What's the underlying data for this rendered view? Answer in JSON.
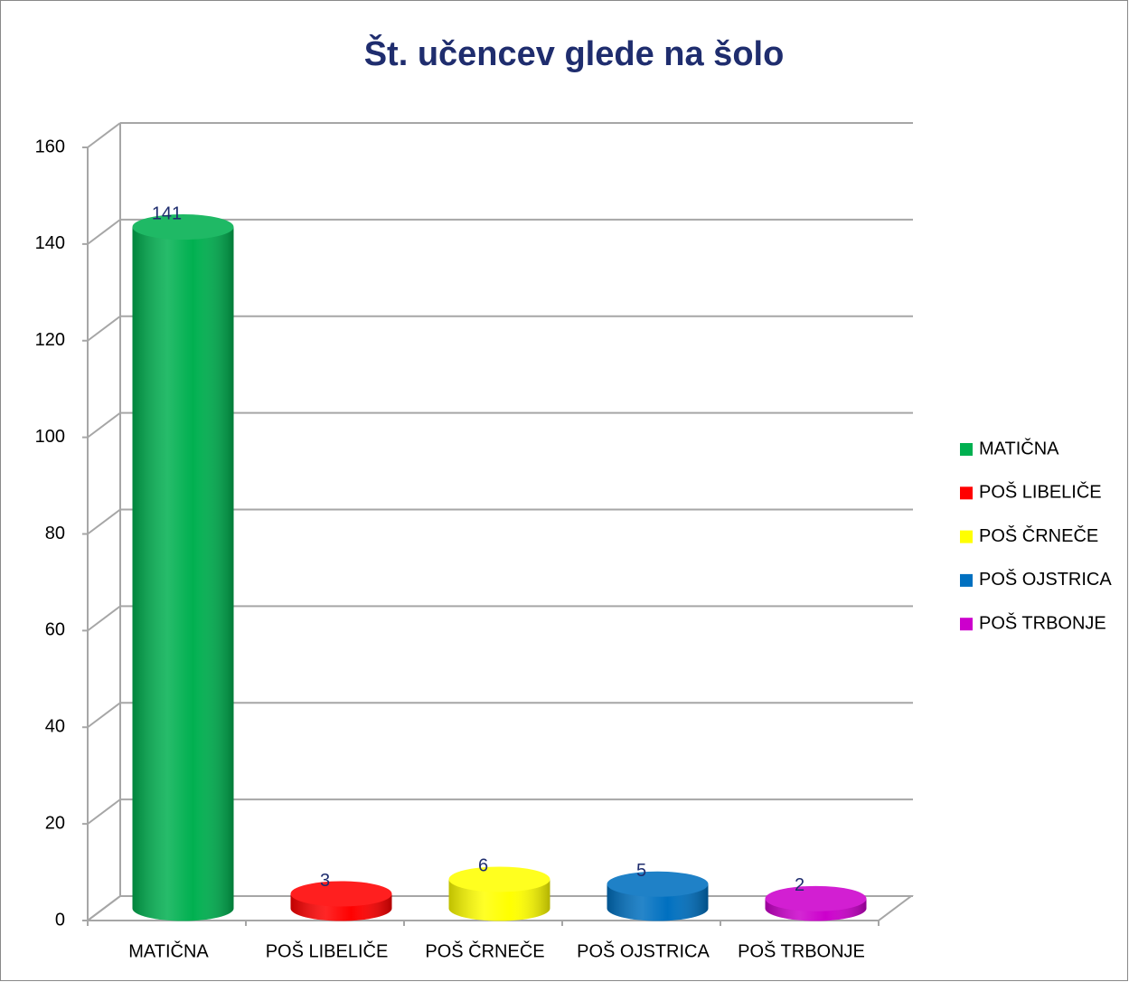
{
  "chart_data": {
    "type": "bar3d",
    "title": "Št. učencev glede na šolo",
    "categories": [
      "MATIČNA",
      "POŠ LIBELIČE",
      "POŠ ČRNEČE",
      "POŠ OJSTRICA",
      "POŠ TRBONJE"
    ],
    "values": [
      141,
      3,
      6,
      5,
      2
    ],
    "colors": [
      "#00b050",
      "#ff0000",
      "#ffff00",
      "#0070c0",
      "#cc00cc"
    ],
    "ylim": [
      0,
      160
    ],
    "yticks": [
      0,
      20,
      40,
      60,
      80,
      100,
      120,
      140,
      160
    ],
    "grid": true,
    "legend": "right"
  }
}
